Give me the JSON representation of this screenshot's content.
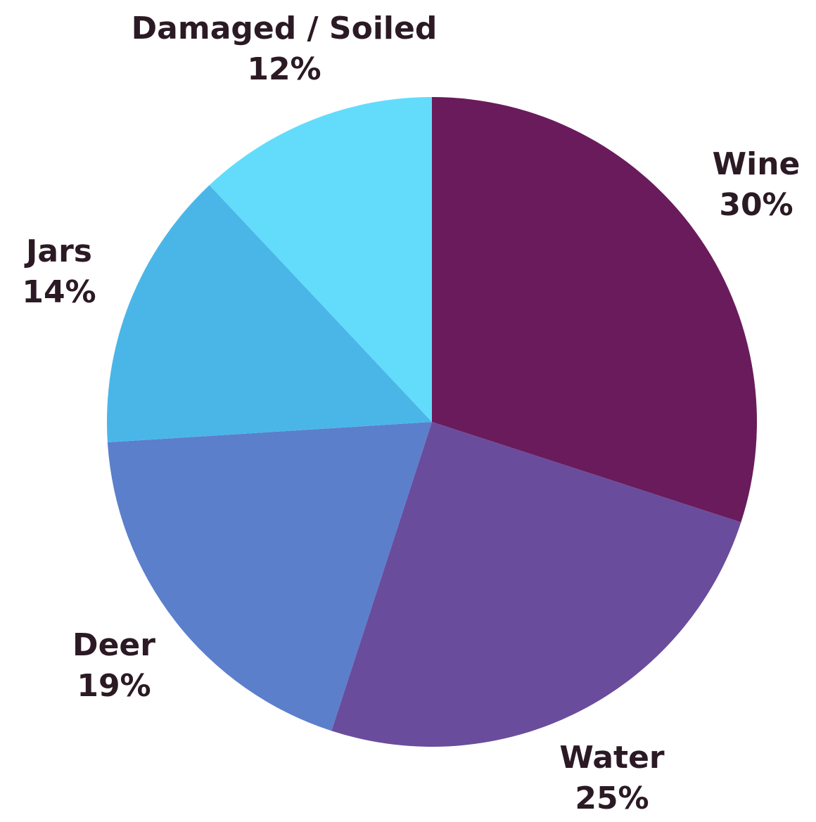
{
  "chart_data": {
    "type": "pie",
    "start_angle_deg": 0,
    "direction": "clockwise",
    "slices": [
      {
        "label": "Wine",
        "value": 30,
        "display": "30%",
        "color": "#6a1b5c"
      },
      {
        "label": "Water",
        "value": 25,
        "display": "25%",
        "color": "#6a4c9c"
      },
      {
        "label": "Deer",
        "value": 19,
        "display": "19%",
        "color": "#5b7fcb"
      },
      {
        "label": "Jars",
        "value": 14,
        "display": "14%",
        "color": "#4ab6e8"
      },
      {
        "label": "Damaged / Soiled",
        "value": 12,
        "display": "12%",
        "color": "#63dcfc"
      }
    ]
  }
}
